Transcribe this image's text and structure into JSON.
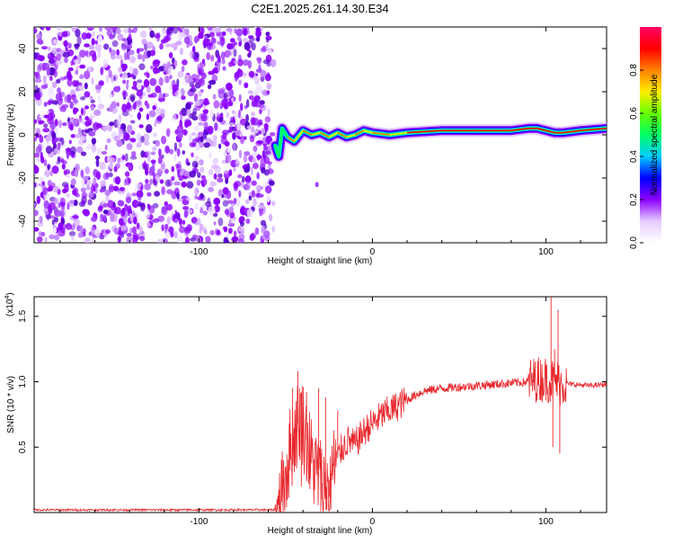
{
  "title": "C2E1.2025.261.14.30.E34",
  "chart_data": [
    {
      "type": "heatmap",
      "name": "spectrogram",
      "xlabel": "Height of straight line (km)",
      "ylabel": "Frequency (Hz)",
      "xlim": [
        -195,
        135
      ],
      "ylim": [
        -50,
        50
      ],
      "xticks": [
        -100,
        0,
        100
      ],
      "yticks": [
        -40,
        -20,
        0,
        20,
        40
      ],
      "xtick_labels": [
        "-100",
        "0",
        "100"
      ],
      "ytick_labels": [
        "-40",
        "-20",
        "0",
        "20",
        "40"
      ],
      "noise_region_x": [
        -195,
        -57
      ],
      "signal_ridge": [
        [
          -56,
          -5
        ],
        [
          -54,
          -10
        ],
        [
          -52,
          3
        ],
        [
          -49,
          -1
        ],
        [
          -45,
          -3
        ],
        [
          -40,
          2
        ],
        [
          -35,
          0
        ],
        [
          -30,
          1
        ],
        [
          -25,
          -1
        ],
        [
          -20,
          1
        ],
        [
          -15,
          -1
        ],
        [
          -10,
          0
        ],
        [
          -5,
          2
        ],
        [
          0,
          1
        ],
        [
          10,
          0
        ],
        [
          20,
          1
        ],
        [
          40,
          2
        ],
        [
          60,
          2
        ],
        [
          80,
          2
        ],
        [
          90,
          3
        ],
        [
          95,
          3
        ],
        [
          100,
          2
        ],
        [
          105,
          1
        ],
        [
          110,
          1
        ],
        [
          120,
          2
        ],
        [
          135,
          3
        ]
      ],
      "outlier": [
        -32,
        -23
      ],
      "colorbar": {
        "label": "Normalized spectral amplitude",
        "range": [
          0,
          1
        ],
        "ticks": [
          0.0,
          0.2,
          0.4,
          0.6,
          0.8
        ],
        "tick_labels": [
          "0.0",
          "0.2",
          "0.4",
          "0.6",
          "0.8"
        ],
        "colors": [
          "#ffffff",
          "#e6ccff",
          "#8c00ff",
          "#0000ff",
          "#00ccff",
          "#00ff66",
          "#66ff00",
          "#ffee00",
          "#ff8000",
          "#ff0000",
          "#ff0066"
        ]
      }
    },
    {
      "type": "line",
      "name": "snr",
      "xlabel": "Height of straight line (km)",
      "ylabel": "SNR (10 * v/v)",
      "y_multiplier": "(x10",
      "y_multiplier_exp": "4",
      "y_multiplier_close": ")",
      "xlim": [
        -195,
        135
      ],
      "ylim": [
        0,
        1.65
      ],
      "xticks": [
        -100,
        0,
        100
      ],
      "yticks": [
        0.5,
        1.0,
        1.5
      ],
      "xtick_labels": [
        "-100",
        "0",
        "100"
      ],
      "ytick_labels": [
        "0.5",
        "1.0",
        "1.5"
      ],
      "color": "#e8262b",
      "envelope": [
        [
          -195,
          0.02
        ],
        [
          -56,
          0.02
        ],
        [
          -53,
          0.05
        ],
        [
          -50,
          0.3
        ],
        [
          -47,
          0.5
        ],
        [
          -44,
          0.65
        ],
        [
          -41,
          0.75
        ],
        [
          -38,
          0.55
        ],
        [
          -35,
          0.4
        ],
        [
          -32,
          0.3
        ],
        [
          -28,
          0.2
        ],
        [
          -25,
          0.25
        ],
        [
          -22,
          0.35
        ],
        [
          -18,
          0.48
        ],
        [
          -14,
          0.55
        ],
        [
          -10,
          0.52
        ],
        [
          -6,
          0.6
        ],
        [
          -2,
          0.66
        ],
        [
          2,
          0.7
        ],
        [
          6,
          0.75
        ],
        [
          10,
          0.78
        ],
        [
          15,
          0.82
        ],
        [
          20,
          0.86
        ],
        [
          25,
          0.9
        ],
        [
          30,
          0.93
        ],
        [
          40,
          0.95
        ],
        [
          50,
          0.96
        ],
        [
          60,
          0.97
        ],
        [
          70,
          0.98
        ],
        [
          80,
          0.99
        ],
        [
          90,
          1.0
        ],
        [
          95,
          1.02
        ],
        [
          100,
          1.02
        ],
        [
          105,
          1.0
        ],
        [
          110,
          0.99
        ],
        [
          115,
          0.98
        ],
        [
          125,
          0.97
        ],
        [
          135,
          0.98
        ]
      ],
      "spikes": [
        [
          -46,
          0.95
        ],
        [
          -43,
          1.08
        ],
        [
          -41,
          0.2
        ],
        [
          -38,
          0.92
        ],
        [
          -36,
          0.18
        ],
        [
          -31,
          0.95
        ],
        [
          -29,
          0.1
        ],
        [
          -27,
          0.88
        ],
        [
          -25,
          0.12
        ],
        [
          -20,
          0.78
        ],
        [
          103,
          1.65
        ],
        [
          104,
          0.5
        ],
        [
          105,
          1.25
        ],
        [
          107,
          1.55
        ],
        [
          108,
          0.45
        ]
      ]
    }
  ]
}
